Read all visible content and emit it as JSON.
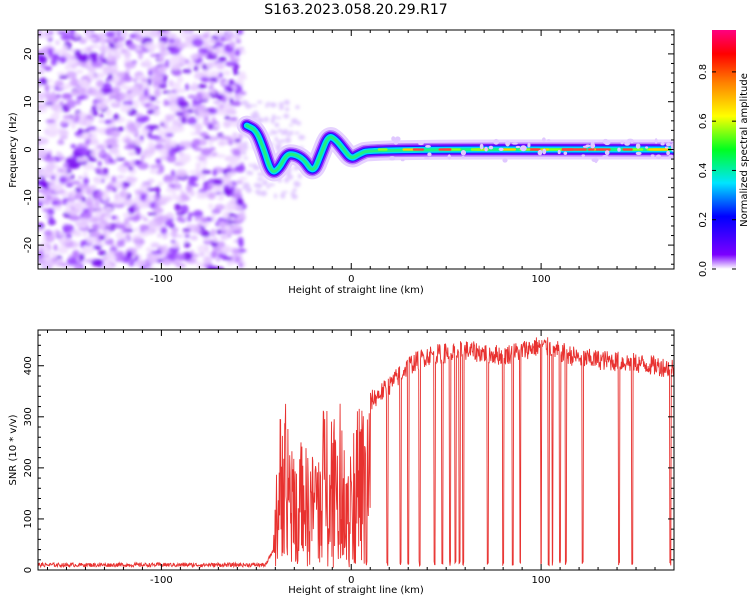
{
  "title": "S163.2023.058.20.29.R17",
  "chart_data": [
    {
      "type": "heatmap",
      "xlabel": "Height of straight line (km)",
      "ylabel": "Frequency (Hz)",
      "xlim": [
        -165,
        170
      ],
      "ylim": [
        -25,
        25
      ],
      "xticks": [
        -100,
        0,
        100
      ],
      "yticks": [
        -20,
        -10,
        0,
        10,
        20
      ],
      "colorbar": {
        "label": "Normalized spectral amplitude",
        "range": [
          0.0,
          0.97
        ],
        "ticks": [
          0.0,
          0.2,
          0.4,
          0.6,
          0.8
        ],
        "colormap": "rainbow (purple-blue-cyan-green-yellow-orange-red-magenta)"
      },
      "features": {
        "noise_region_x": [
          -165,
          -57
        ],
        "signal_trace": [
          {
            "x": -55,
            "y": 5
          },
          {
            "x": -50,
            "y": 4
          },
          {
            "x": -46,
            "y": 0
          },
          {
            "x": -42,
            "y": -5
          },
          {
            "x": -38,
            "y": -4
          },
          {
            "x": -34,
            "y": -1
          },
          {
            "x": -30,
            "y": -1
          },
          {
            "x": -25,
            "y": -2
          },
          {
            "x": -20,
            "y": -5
          },
          {
            "x": -16,
            "y": -1
          },
          {
            "x": -12,
            "y": 3
          },
          {
            "x": -8,
            "y": 2
          },
          {
            "x": -4,
            "y": 0
          },
          {
            "x": 0,
            "y": -2
          },
          {
            "x": 4,
            "y": -1
          },
          {
            "x": 10,
            "y": 0
          },
          {
            "x": 170,
            "y": 0
          }
        ]
      }
    },
    {
      "type": "line",
      "xlabel": "Height of straight line (km)",
      "ylabel": "SNR (10 * v/v)",
      "xlim": [
        -165,
        170
      ],
      "ylim": [
        0,
        470
      ],
      "xticks": [
        -100,
        0,
        100
      ],
      "yticks": [
        0,
        100,
        200,
        300,
        400
      ],
      "series_color": "#e8312f",
      "envelope": [
        {
          "x": -165,
          "y": 10
        },
        {
          "x": -45,
          "y": 10
        },
        {
          "x": -41,
          "y": 40
        },
        {
          "x": -40,
          "y": 200
        },
        {
          "x": -36,
          "y": 300
        },
        {
          "x": -30,
          "y": 230
        },
        {
          "x": -20,
          "y": 200
        },
        {
          "x": -12,
          "y": 320
        },
        {
          "x": 0,
          "y": 250
        },
        {
          "x": 10,
          "y": 330
        },
        {
          "x": 20,
          "y": 360
        },
        {
          "x": 30,
          "y": 400
        },
        {
          "x": 40,
          "y": 420
        },
        {
          "x": 60,
          "y": 430
        },
        {
          "x": 80,
          "y": 420
        },
        {
          "x": 100,
          "y": 440
        },
        {
          "x": 120,
          "y": 415
        },
        {
          "x": 150,
          "y": 405
        },
        {
          "x": 170,
          "y": 395
        }
      ],
      "dropouts_x": [
        8,
        19,
        26,
        30,
        36,
        44,
        48,
        52,
        55,
        57,
        59,
        72,
        80,
        85,
        89,
        100,
        104,
        106,
        110,
        113,
        122,
        141,
        148,
        168
      ]
    }
  ]
}
